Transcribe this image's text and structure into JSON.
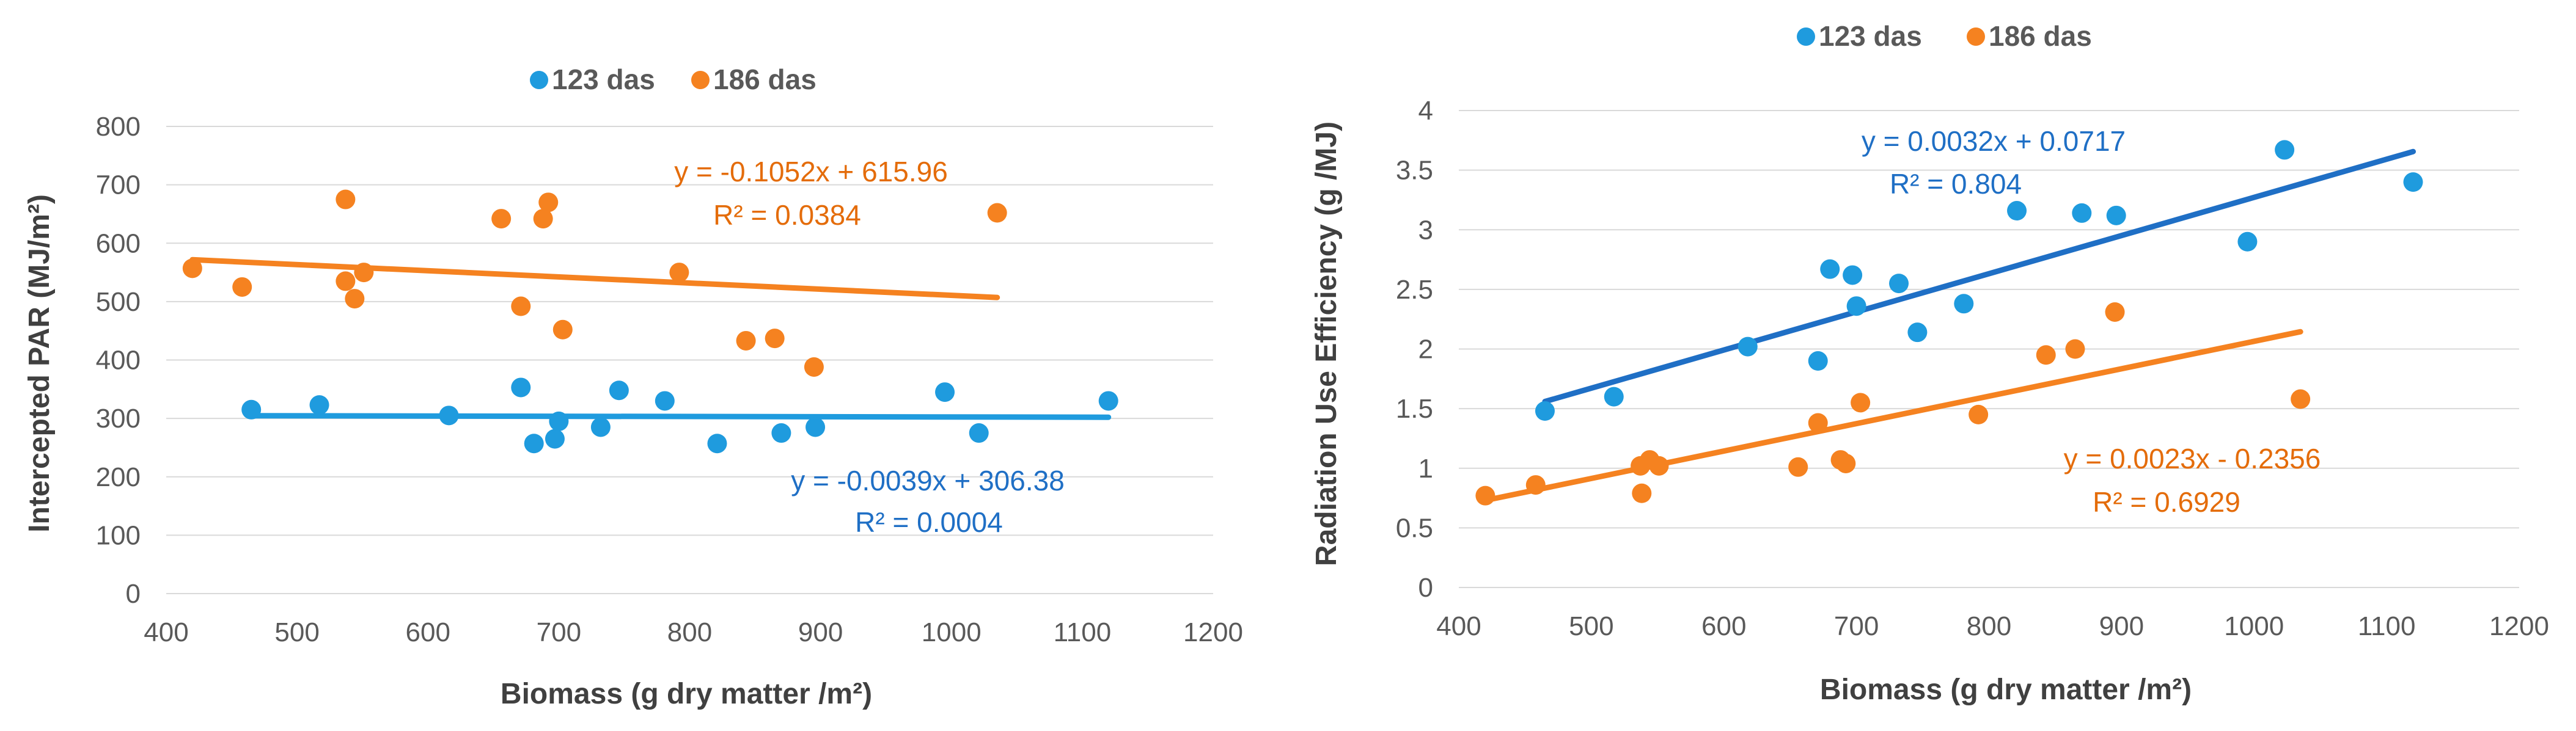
{
  "colors": {
    "series_123": "#1f9bde",
    "series_186": "#f58220",
    "line_123_right": "#1f6fc5",
    "eq_123": "#1f6fc5",
    "eq_186": "#e46c0a"
  },
  "chart_data": [
    {
      "type": "scatter",
      "ylabel": "Intercepted PAR (MJ/m²)",
      "xlabel": "Biomass  (g dry matter /m²)",
      "xlim": [
        400,
        1200
      ],
      "ylim": [
        0,
        800
      ],
      "x_ticks": [
        "400",
        "500",
        "600",
        "700",
        "800",
        "900",
        "1000",
        "1100",
        "1200"
      ],
      "y_ticks": [
        "0",
        "100",
        "200",
        "300",
        "400",
        "500",
        "600",
        "700",
        "800"
      ],
      "legend": [
        "123 das",
        "186 das"
      ],
      "series": [
        {
          "name": "123 das",
          "points": [
            [
              465,
              315
            ],
            [
              517,
              323
            ],
            [
              616,
              305
            ],
            [
              671,
              353
            ],
            [
              681,
              257
            ],
            [
              697,
              265
            ],
            [
              700,
              295
            ],
            [
              732,
              285
            ],
            [
              746,
              348
            ],
            [
              781,
              330
            ],
            [
              821,
              257
            ],
            [
              870,
              275
            ],
            [
              896,
              285
            ],
            [
              995,
              345
            ],
            [
              1021,
              275
            ],
            [
              1120,
              330
            ]
          ],
          "trendline": {
            "equation": "y = -0.0039x + 306.38",
            "r2": "R² = 0.0004",
            "slope": -0.0039,
            "intercept": 306.38,
            "x_range": [
              465,
              1120
            ]
          }
        },
        {
          "name": "186 das",
          "points": [
            [
              420,
              557
            ],
            [
              458,
              525
            ],
            [
              537,
              675
            ],
            [
              537,
              535
            ],
            [
              544,
              505
            ],
            [
              551,
              550
            ],
            [
              656,
              642
            ],
            [
              671,
              492
            ],
            [
              688,
              642
            ],
            [
              692,
              670
            ],
            [
              703,
              452
            ],
            [
              792,
              550
            ],
            [
              843,
              433
            ],
            [
              865,
              437
            ],
            [
              895,
              388
            ],
            [
              1035,
              652
            ]
          ],
          "trendline": {
            "equation": "y = -0.1052x + 615.96",
            "r2": "R² = 0.0384",
            "slope": -0.1052,
            "intercept": 615.96,
            "x_range": [
              420,
              1035
            ]
          }
        }
      ]
    },
    {
      "type": "scatter",
      "ylabel": "Radiation  Use  Efficiency  (g /MJ)",
      "xlabel": "Biomass  (g dry matter /m²)",
      "xlim": [
        400,
        1200
      ],
      "ylim": [
        0,
        4
      ],
      "x_ticks": [
        "400",
        "500",
        "600",
        "700",
        "800",
        "900",
        "1000",
        "1100",
        "1200"
      ],
      "y_ticks": [
        "0",
        "0.5",
        "1",
        "1.5",
        "2",
        "2.5",
        "3",
        "3.5",
        "4"
      ],
      "legend": [
        "123 das",
        "186 das"
      ],
      "series": [
        {
          "name": "123 das",
          "points": [
            [
              465,
              1.48
            ],
            [
              517,
              1.6
            ],
            [
              618,
              2.02
            ],
            [
              671,
              1.9
            ],
            [
              680,
              2.67
            ],
            [
              697,
              2.62
            ],
            [
              700,
              2.36
            ],
            [
              732,
              2.55
            ],
            [
              746,
              2.14
            ],
            [
              781,
              2.38
            ],
            [
              821,
              3.16
            ],
            [
              870,
              3.14
            ],
            [
              896,
              3.12
            ],
            [
              995,
              2.9
            ],
            [
              1023,
              3.67
            ],
            [
              1120,
              3.4
            ]
          ],
          "trendline": {
            "equation": "y = 0.0032x + 0.0717",
            "r2": "R² = 0.804",
            "slope": 0.0032,
            "intercept": 0.0717,
            "x_range": [
              465,
              1120
            ]
          }
        },
        {
          "name": "186 das",
          "points": [
            [
              420,
              0.77
            ],
            [
              458,
              0.86
            ],
            [
              537,
              1.02
            ],
            [
              538,
              0.79
            ],
            [
              544,
              1.07
            ],
            [
              551,
              1.02
            ],
            [
              656,
              1.01
            ],
            [
              671,
              1.38
            ],
            [
              688,
              1.07
            ],
            [
              692,
              1.04
            ],
            [
              703,
              1.55
            ],
            [
              792,
              1.45
            ],
            [
              843,
              1.95
            ],
            [
              865,
              2.0
            ],
            [
              895,
              2.31
            ],
            [
              1035,
              1.58
            ]
          ],
          "trendline": {
            "equation": "y = 0.0023x - 0.2356",
            "r2": "R² = 0.6929",
            "slope": 0.0023,
            "intercept": -0.2356,
            "x_range": [
              420,
              1035
            ]
          }
        }
      ]
    }
  ]
}
